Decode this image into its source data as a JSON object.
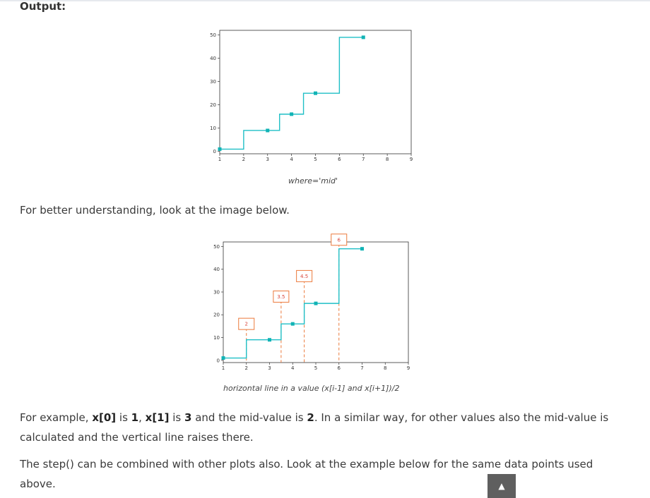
{
  "heading": "Output:",
  "colors": {
    "line": "#1fbfc6",
    "marker": "#11b3b5",
    "annotation": "#ec7a3c",
    "annotation_text": "#d8453b"
  },
  "chart_data": [
    {
      "type": "line",
      "drawstyle": "steps-mid",
      "x": [
        1,
        3,
        4,
        5,
        7
      ],
      "y": [
        1,
        9,
        16,
        25,
        49
      ],
      "xticks": [
        1,
        2,
        3,
        4,
        5,
        6,
        7,
        8,
        9
      ],
      "yticks": [
        0,
        10,
        20,
        30,
        40,
        50
      ],
      "xlim": [
        1,
        9
      ],
      "ylim": [
        -1,
        52
      ],
      "title": "",
      "xlabel": "",
      "ylabel": "",
      "caption": "where='mid'"
    },
    {
      "type": "line",
      "drawstyle": "steps-mid",
      "x": [
        1,
        3,
        4,
        5,
        7
      ],
      "y": [
        1,
        9,
        16,
        25,
        49
      ],
      "xticks": [
        1,
        2,
        3,
        4,
        5,
        6,
        7,
        8,
        9
      ],
      "yticks": [
        0,
        10,
        20,
        30,
        40,
        50
      ],
      "xlim": [
        1,
        9
      ],
      "ylim": [
        -1,
        52
      ],
      "title": "",
      "xlabel": "",
      "ylabel": "",
      "annotations": [
        {
          "x": 2,
          "label": "2",
          "label_y": 16
        },
        {
          "x": 3.5,
          "label": "3.5",
          "label_y": 28
        },
        {
          "x": 4.5,
          "label": "4.5",
          "label_y": 37
        },
        {
          "x": 6,
          "label": "6",
          "label_y": 53
        }
      ],
      "caption": "horizontal line in a value (x[i-1] and x[i+1])/2"
    }
  ],
  "text": {
    "intro": "For better understanding, look at the image below.",
    "ex_a": "For example, ",
    "ex_b": "x[0]",
    "ex_c": " is ",
    "ex_d": "1",
    "ex_e": ", ",
    "ex_f": "x[1]",
    "ex_g": " is ",
    "ex_h": "3",
    "ex_i": " and the mid-value is ",
    "ex_j": "2",
    "ex_k": ". In a similar way, for other values also the mid-value is calculated and the vertical line raises there.",
    "combine": "The step() can be combined with other plots also. Look at the example below for the same data points used above."
  },
  "scroll_top_icon": "▲"
}
